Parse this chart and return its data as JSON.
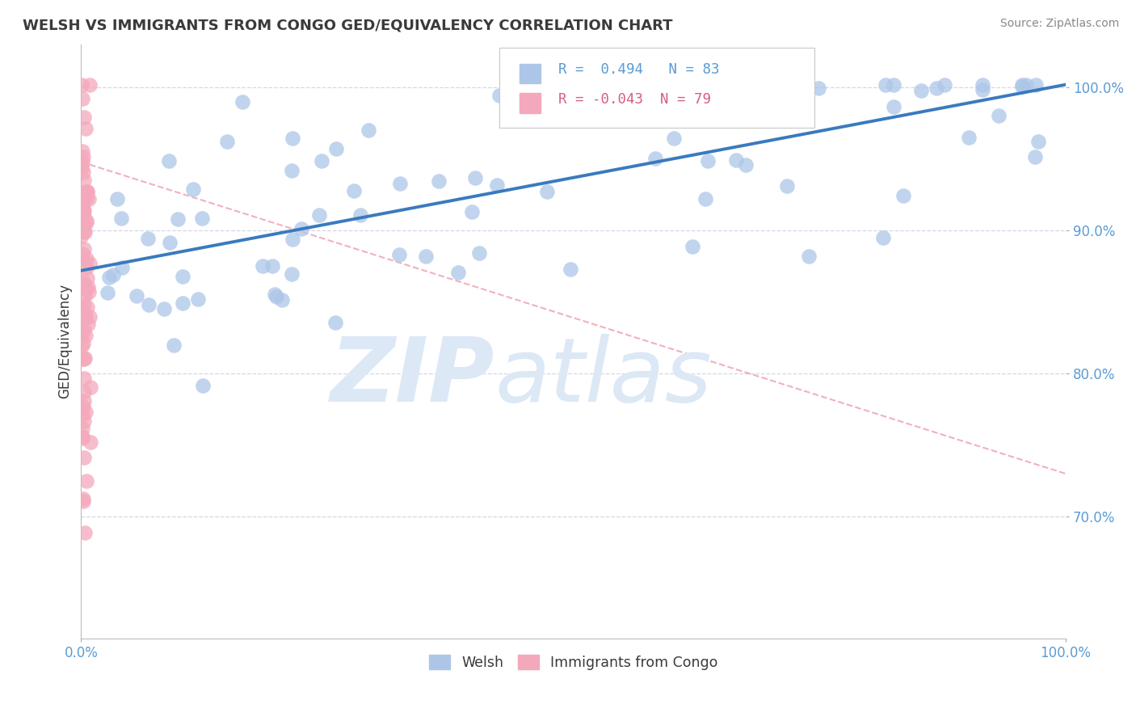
{
  "title": "WELSH VS IMMIGRANTS FROM CONGO GED/EQUIVALENCY CORRELATION CHART",
  "source": "Source: ZipAtlas.com",
  "ylabel": "GED/Equivalency",
  "x_min": 0.0,
  "x_max": 1.0,
  "y_min": 0.615,
  "y_max": 1.03,
  "y_ticks": [
    0.7,
    0.8,
    0.9,
    1.0
  ],
  "y_tick_labels": [
    "70.0%",
    "80.0%",
    "90.0%",
    "100.0%"
  ],
  "legend_blue_label": "Welsh",
  "legend_pink_label": "Immigrants from Congo",
  "R_blue": 0.494,
  "N_blue": 83,
  "R_pink": -0.043,
  "N_pink": 79,
  "blue_color": "#adc6e8",
  "pink_color": "#f4a8bb",
  "blue_line_color": "#3a7abf",
  "pink_line_color": "#e8708a",
  "grid_color": "#d0d8e8",
  "watermark_color": "#dce8f5",
  "background_color": "#ffffff",
  "tick_color": "#5b9bd5",
  "title_color": "#3a3a3a",
  "ylabel_color": "#3a3a3a",
  "source_color": "#888888",
  "blue_trend_y0": 0.872,
  "blue_trend_y1": 1.002,
  "pink_trend_y0": 0.948,
  "pink_trend_y1": 0.73
}
